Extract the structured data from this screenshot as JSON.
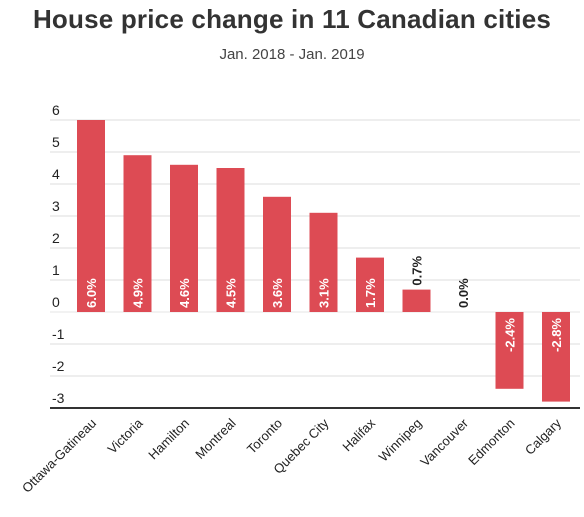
{
  "header": {
    "title": "House price change in 11 Canadian cities",
    "subtitle": "Jan. 2018 - Jan. 2019"
  },
  "colors": {
    "bar": "#dd4b54",
    "label_inside": "#ffffff",
    "label_outside": "#222222"
  },
  "chart_data": {
    "type": "bar",
    "title": "House price change in 11 Canadian cities",
    "subtitle": "Jan. 2018 - Jan. 2019",
    "xlabel": "",
    "ylabel": "",
    "ylim": [
      -3,
      6
    ],
    "yticks": [
      6,
      5,
      4,
      3,
      2,
      1,
      0,
      -1,
      -2,
      -3
    ],
    "grid": true,
    "categories": [
      "Ottawa-Gatineau",
      "Victoria",
      "Hamilton",
      "Montreal",
      "Toronto",
      "Quebec City",
      "Halifax",
      "Winnipeg",
      "Vancouver",
      "Edmonton",
      "Calgary"
    ],
    "values": [
      6.0,
      4.9,
      4.6,
      4.5,
      3.6,
      3.1,
      1.7,
      0.7,
      0.0,
      -2.4,
      -2.8
    ],
    "data_labels": [
      "6.0%",
      "4.9%",
      "4.6%",
      "4.5%",
      "3.6%",
      "3.1%",
      "1.7%",
      "0.7%",
      "0.0%",
      "-2.4%",
      "-2.8%"
    ]
  }
}
